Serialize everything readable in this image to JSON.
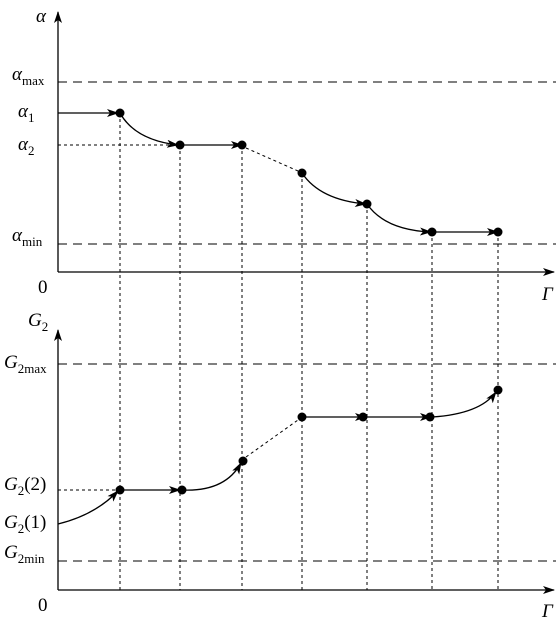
{
  "top_panel": {
    "y_axis_label": "α",
    "levels": [
      {
        "base": "α",
        "sub": "max"
      },
      {
        "base": "α",
        "sub": "1"
      },
      {
        "base": "α",
        "sub": "2"
      },
      {
        "base": "α",
        "sub": "min"
      }
    ],
    "origin": "0",
    "x_axis_label": "Γ"
  },
  "bottom_panel": {
    "y_axis_label": {
      "base": "G",
      "sub": "2"
    },
    "levels": [
      {
        "base": "G",
        "sub": "2max"
      },
      {
        "base": "G",
        "sub": "2",
        "suffix": "(2)"
      },
      {
        "base": "G",
        "sub": "2",
        "suffix": "(1)"
      },
      {
        "base": "G",
        "sub": "2min"
      }
    ],
    "origin": "0",
    "x_axis_label": "Γ"
  }
}
